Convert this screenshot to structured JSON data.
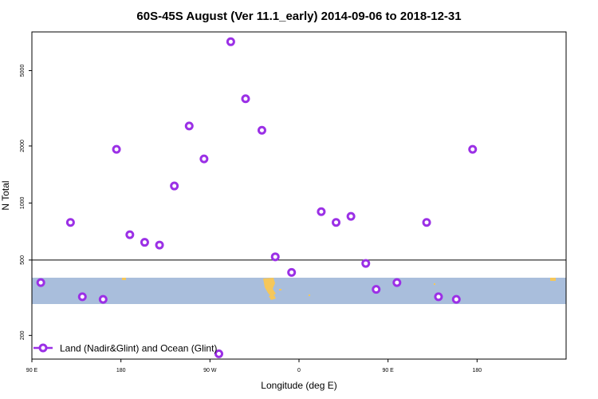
{
  "chart_data": {
    "type": "scatter",
    "title": "60S-45S August (Ver 11.1_early)   2014-09-06 to 2018-12-31",
    "xlabel": "Longitude (deg E)",
    "ylabel": "N Total",
    "xlim": [
      -90,
      90
    ],
    "ylim": [
      150,
      8000
    ],
    "y_scale": "log",
    "x_ticks": [
      {
        "value": -90,
        "label": "90 E"
      },
      {
        "value": -60,
        "label": "180"
      },
      {
        "value": -30,
        "label": "90 W"
      },
      {
        "value": 0,
        "label": "0"
      },
      {
        "value": 30,
        "label": "90 E"
      },
      {
        "value": 60,
        "label": "180"
      }
    ],
    "y_ticks": [
      200,
      500,
      1000,
      2000,
      5000
    ],
    "reference_line": 500,
    "legend": {
      "position": "bottom-left",
      "label": "Land (Nadir&Glint) and Ocean (Glint)"
    },
    "series": [
      {
        "name": "Land (Nadir&Glint) and Ocean (Glint)",
        "color": "#9b30e6",
        "points": [
          {
            "x": -87,
            "y": 380
          },
          {
            "x": -77,
            "y": 790
          },
          {
            "x": -73,
            "y": 320
          },
          {
            "x": -66,
            "y": 310
          },
          {
            "x": -61.5,
            "y": 1920
          },
          {
            "x": -57,
            "y": 680
          },
          {
            "x": -52,
            "y": 620
          },
          {
            "x": -47,
            "y": 600
          },
          {
            "x": -42,
            "y": 1230
          },
          {
            "x": -37,
            "y": 2550
          },
          {
            "x": -32,
            "y": 1710
          },
          {
            "x": -27,
            "y": 160
          },
          {
            "x": -23,
            "y": 7100
          },
          {
            "x": -18,
            "y": 3550
          },
          {
            "x": -12.5,
            "y": 2420
          },
          {
            "x": -8,
            "y": 520
          },
          {
            "x": -2.5,
            "y": 430
          },
          {
            "x": 7.5,
            "y": 900
          },
          {
            "x": 12.5,
            "y": 790
          },
          {
            "x": 17.5,
            "y": 850
          },
          {
            "x": 22.5,
            "y": 480
          },
          {
            "x": 26,
            "y": 350
          },
          {
            "x": 33,
            "y": 380
          },
          {
            "x": 43,
            "y": 790
          },
          {
            "x": 47,
            "y": 320
          },
          {
            "x": 53,
            "y": 310
          },
          {
            "x": 58.5,
            "y": 1920
          }
        ]
      }
    ],
    "colors": {
      "marker": "#9b30e6",
      "band": "#a9bedc",
      "land": "#f5c75a",
      "axis": "#000000"
    }
  }
}
